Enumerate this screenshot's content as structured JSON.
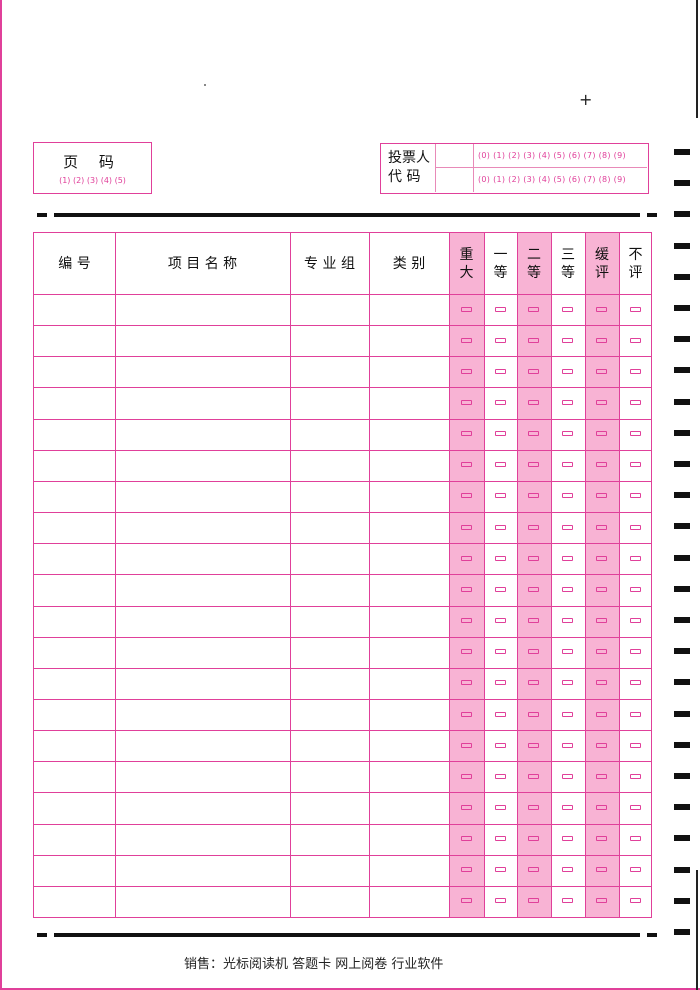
{
  "page_code": {
    "label": "页 码",
    "options": "(1) (2) (3) (4) (5)"
  },
  "voter_code": {
    "label_line1": "投票人",
    "label_line2": "代 码",
    "options_row1": "(0) (1) (2) (3) (4) (5) (6) (7) (8) (9)",
    "options_row2": "(0) (1) (2) (3) (4) (5) (6) (7) (8) (9)"
  },
  "table": {
    "headers": [
      "编 号",
      "项 目 名 称",
      "专 业 组",
      "类 别",
      "重大",
      "一等",
      "二等",
      "三等",
      "缓评",
      "不评"
    ],
    "row_count": 20
  },
  "footer": "销售：光标阅读机 答题卡 网上阅卷 行业软件",
  "colors": {
    "accent": "#e0409a",
    "shade": "#f8b3d4"
  }
}
